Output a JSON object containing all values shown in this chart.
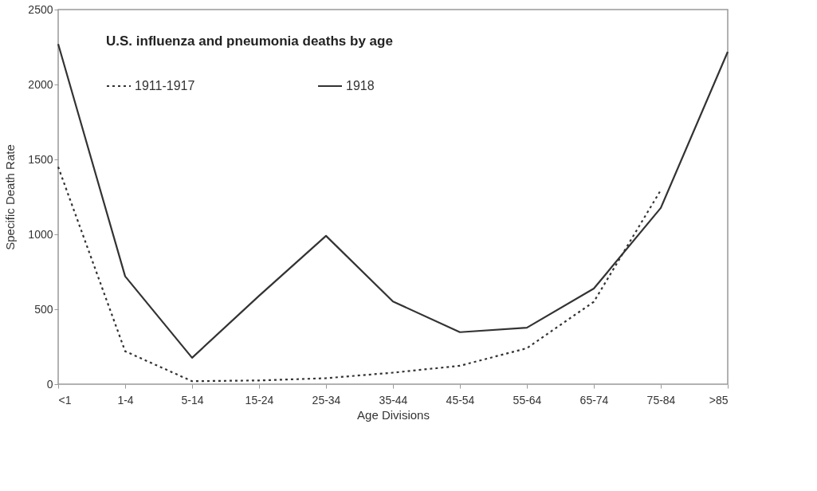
{
  "chart_data": {
    "type": "line",
    "title": "U.S. influenza and pneumonia deaths by age",
    "xlabel": "Age Divisions",
    "ylabel": "Specific Death Rate",
    "categories": [
      "<1",
      "1-4",
      "5-14",
      "15-24",
      "25-34",
      "35-44",
      "45-54",
      "55-64",
      "65-74",
      "75-84",
      ">85"
    ],
    "series": [
      {
        "name": "1911-1917",
        "color": "#333333",
        "line_style": "dotted",
        "values": [
          1450,
          220,
          20,
          25,
          40,
          77,
          123,
          240,
          550,
          1295,
          null
        ]
      },
      {
        "name": "1918",
        "color": "#333333",
        "line_style": "solid",
        "values": [
          2270,
          720,
          176,
          590,
          990,
          552,
          347,
          377,
          638,
          1176,
          2218
        ]
      }
    ],
    "ylim": [
      0,
      2500
    ],
    "yticks": [
      0,
      500,
      1000,
      1500,
      2000,
      2500
    ],
    "grid": false,
    "legend": "top left",
    "marker": "none"
  }
}
